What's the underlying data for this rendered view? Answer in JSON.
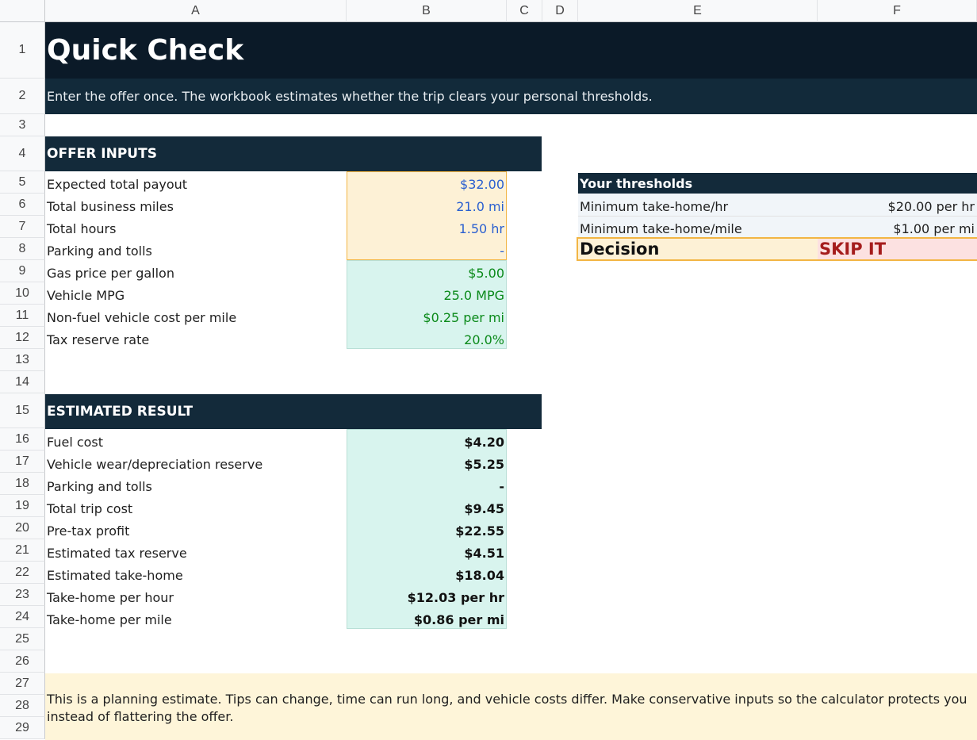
{
  "columns": [
    "A",
    "B",
    "C",
    "D",
    "E",
    "F"
  ],
  "rows": [
    "1",
    "2",
    "3",
    "4",
    "5",
    "6",
    "7",
    "8",
    "9",
    "10",
    "11",
    "12",
    "13",
    "14",
    "15",
    "16",
    "17",
    "18",
    "19",
    "20",
    "21",
    "22",
    "23",
    "24",
    "25",
    "26",
    "27",
    "28",
    "29"
  ],
  "title": "Quick Check",
  "subtitle": "Enter the offer once. The workbook estimates whether the trip clears your personal thresholds.",
  "offer_inputs": {
    "header": "OFFER INPUTS",
    "items": [
      {
        "label": "Expected total payout",
        "value": "$32.00"
      },
      {
        "label": "Total business miles",
        "value": "21.0 mi"
      },
      {
        "label": "Total hours",
        "value": "1.50 hr"
      },
      {
        "label": "Parking and tolls",
        "value": "-"
      },
      {
        "label": "Gas price per gallon",
        "value": "$5.00"
      },
      {
        "label": "Vehicle MPG",
        "value": "25.0 MPG"
      },
      {
        "label": "Non-fuel vehicle cost per mile",
        "value": "$0.25 per mi"
      },
      {
        "label": "Tax reserve rate",
        "value": "20.0%"
      }
    ]
  },
  "thresholds": {
    "header": "Your thresholds",
    "items": [
      {
        "label": "Minimum take-home/hr",
        "value": "$20.00 per hr"
      },
      {
        "label": "Minimum take-home/mile",
        "value": "$1.00 per mi"
      }
    ],
    "decision_label": "Decision",
    "decision_value": "SKIP IT"
  },
  "estimated_result": {
    "header": "ESTIMATED RESULT",
    "items": [
      {
        "label": "Fuel cost",
        "value": "$4.20"
      },
      {
        "label": "Vehicle wear/depreciation reserve",
        "value": "$5.25"
      },
      {
        "label": "Parking and tolls",
        "value": "-"
      },
      {
        "label": "Total trip cost",
        "value": "$9.45"
      },
      {
        "label": "Pre-tax profit",
        "value": "$22.55"
      },
      {
        "label": "Estimated tax reserve",
        "value": "$4.51"
      },
      {
        "label": "Estimated take-home",
        "value": "$18.04"
      },
      {
        "label": "Take-home per hour",
        "value": "$12.03 per hr"
      },
      {
        "label": "Take-home per mile",
        "value": "$0.86 per mi"
      }
    ]
  },
  "note": "This is a planning estimate. Tips can change, time can run long, and vehicle costs differ. Make conservative inputs so the calculator protects you instead of flattering the offer.",
  "colors": {
    "title_bg": "#0b1a28",
    "header_bg": "#132a3a",
    "input_fill": "#fdf1d6",
    "assumption_fill": "#d8f4ee",
    "decision_fill": "#fdf1d6",
    "skip_fill": "#fce1e1",
    "skip_text": "#a51c1c",
    "note_fill": "#fef5d9"
  }
}
